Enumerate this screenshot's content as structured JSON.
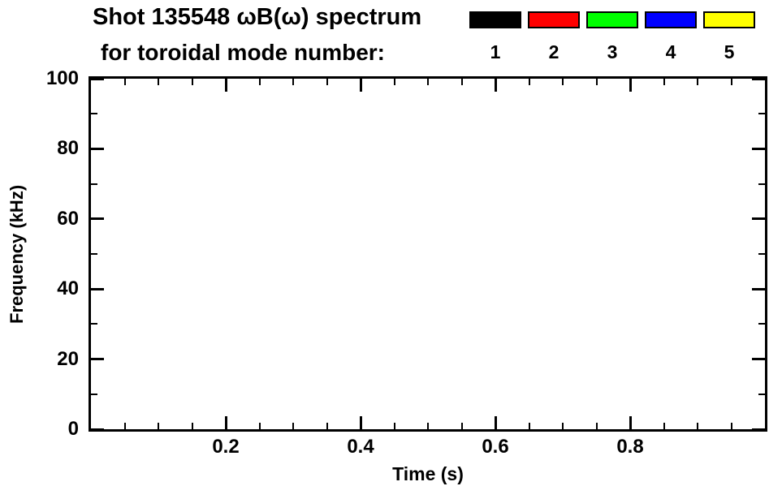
{
  "chart_data": {
    "type": "scatter",
    "title_line1": "Shot 135548 ωB(ω) spectrum",
    "title_line2": "for toroidal mode number:",
    "xlabel": "Time (s)",
    "ylabel": "Frequency (kHz)",
    "xlim": [
      0.0,
      1.0
    ],
    "ylim": [
      0,
      100
    ],
    "xticks": [
      {
        "value": 0.2,
        "label": "0.2"
      },
      {
        "value": 0.4,
        "label": "0.4"
      },
      {
        "value": 0.6,
        "label": "0.6"
      },
      {
        "value": 0.8,
        "label": "0.8"
      }
    ],
    "x_minor_step": 0.05,
    "yticks": [
      {
        "value": 0,
        "label": "0"
      },
      {
        "value": 20,
        "label": "20"
      },
      {
        "value": 40,
        "label": "40"
      },
      {
        "value": 60,
        "label": "60"
      },
      {
        "value": 80,
        "label": "80"
      },
      {
        "value": 100,
        "label": "100"
      }
    ],
    "y_minor_step": 10,
    "grid": false,
    "legend": {
      "entries": [
        {
          "label": "1",
          "color": "#000000"
        },
        {
          "label": "2",
          "color": "#ff0000"
        },
        {
          "label": "3",
          "color": "#00ff00"
        },
        {
          "label": "4",
          "color": "#0000ff"
        },
        {
          "label": "5",
          "color": "#ffff00"
        }
      ]
    },
    "series": [],
    "axis_color": "#000000",
    "background": "#ffffff"
  }
}
